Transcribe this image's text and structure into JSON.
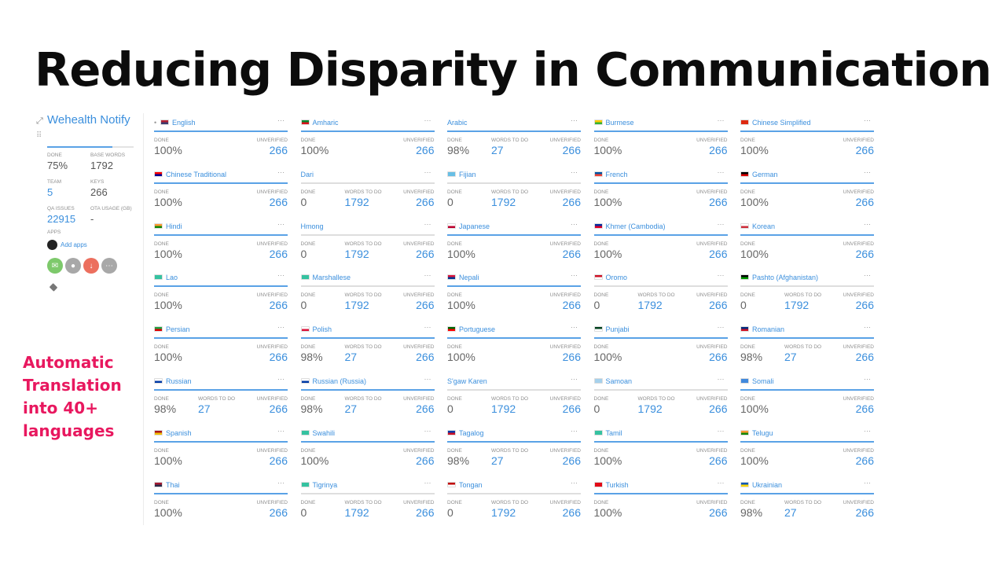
{
  "slide": {
    "title": "Reducing Disparity in Communication",
    "caption": "Automatic Translation into 40+ languages"
  },
  "project": {
    "name": "Wehealth Notify",
    "progress": 0.75,
    "stats": {
      "done_label": "DONE",
      "done_value": "75%",
      "base_words_label": "BASE WORDS",
      "base_words_value": "1792",
      "team_label": "TEAM",
      "team_value": "5",
      "keys_label": "KEYS",
      "keys_value": "266",
      "qa_label": "QA ISSUES",
      "qa_value": "22915",
      "ota_label": "OTA USAGE (GB)",
      "ota_value": "-"
    },
    "apps_label": "APPS",
    "add_apps_label": "Add apps",
    "app_icons": [
      {
        "icon": "envelope-icon",
        "glyph": "✉",
        "color": "#7dc96b"
      },
      {
        "icon": "user-icon",
        "glyph": "●",
        "color": "#a8a8a8"
      },
      {
        "icon": "download-icon",
        "glyph": "↓",
        "color": "#ec6f5e"
      },
      {
        "icon": "more-icon",
        "glyph": "⋯",
        "color": "#a8a8a8"
      }
    ]
  },
  "labels": {
    "done": "DONE",
    "words_to_do": "WORDS TO DO",
    "unverified": "UNVERIFIED",
    "more": "···"
  },
  "languages": [
    {
      "name": "English",
      "flag": [
        "#b22234",
        "#3c3b6e"
      ],
      "bullet": "•",
      "done": "100%",
      "todo": null,
      "unverified": "266"
    },
    {
      "name": "Amharic",
      "flag": [
        "#078930",
        "#da121a"
      ],
      "done": "100%",
      "todo": null,
      "unverified": "266"
    },
    {
      "name": "Arabic",
      "flag": null,
      "done": "98%",
      "todo": "27",
      "unverified": "266"
    },
    {
      "name": "Burmese",
      "flag": [
        "#fecb00",
        "#34b233"
      ],
      "done": "100%",
      "todo": null,
      "unverified": "266"
    },
    {
      "name": "Chinese Simplified",
      "flag": [
        "#de2910",
        "#de2910"
      ],
      "done": "100%",
      "todo": null,
      "unverified": "266"
    },
    {
      "name": "Chinese Traditional",
      "flag": [
        "#fe0000",
        "#000095"
      ],
      "done": "100%",
      "todo": null,
      "unverified": "266"
    },
    {
      "name": "Dari",
      "flag": null,
      "done": "0",
      "todo": "1792",
      "unverified": "266"
    },
    {
      "name": "Fijian",
      "flag": [
        "#68bfe5",
        "#68bfe5"
      ],
      "done": "0",
      "todo": "1792",
      "unverified": "266"
    },
    {
      "name": "French",
      "flag": [
        "#0055a4",
        "#ef4135"
      ],
      "done": "100%",
      "todo": null,
      "unverified": "266"
    },
    {
      "name": "German",
      "flag": [
        "#000000",
        "#dd0000"
      ],
      "done": "100%",
      "todo": null,
      "unverified": "266"
    },
    {
      "name": "Hindi",
      "flag": [
        "#ff9933",
        "#138808"
      ],
      "done": "100%",
      "todo": null,
      "unverified": "266"
    },
    {
      "name": "Hmong",
      "flag": null,
      "done": "0",
      "todo": "1792",
      "unverified": "266"
    },
    {
      "name": "Japanese",
      "flag": [
        "#ffffff",
        "#bc002d"
      ],
      "done": "100%",
      "todo": null,
      "unverified": "266"
    },
    {
      "name": "Khmer (Cambodia)",
      "flag": [
        "#032ea1",
        "#e00025"
      ],
      "done": "100%",
      "todo": null,
      "unverified": "266"
    },
    {
      "name": "Korean",
      "flag": [
        "#ffffff",
        "#cd2e3a"
      ],
      "done": "100%",
      "todo": null,
      "unverified": "266"
    },
    {
      "name": "Lao",
      "flag": [
        "#35c2a0",
        "#35c2a0"
      ],
      "done": "100%",
      "todo": null,
      "unverified": "266"
    },
    {
      "name": "Marshallese",
      "flag": [
        "#35c2a0",
        "#35c2a0"
      ],
      "done": "0",
      "todo": "1792",
      "unverified": "266"
    },
    {
      "name": "Nepali",
      "flag": [
        "#dc143c",
        "#003893"
      ],
      "done": "100%",
      "todo": null,
      "unverified": "266"
    },
    {
      "name": "Oromo",
      "flag": [
        "#ce1126",
        "#ffffff"
      ],
      "done": "0",
      "todo": "1792",
      "unverified": "266"
    },
    {
      "name": "Pashto (Afghanistan)",
      "flag": [
        "#000000",
        "#009900"
      ],
      "done": "0",
      "todo": "1792",
      "unverified": "266"
    },
    {
      "name": "Persian",
      "flag": [
        "#239f40",
        "#da0000"
      ],
      "done": "100%",
      "todo": null,
      "unverified": "266"
    },
    {
      "name": "Polish",
      "flag": [
        "#ffffff",
        "#dc143c"
      ],
      "done": "98%",
      "todo": "27",
      "unverified": "266"
    },
    {
      "name": "Portuguese",
      "flag": [
        "#006600",
        "#ff0000"
      ],
      "done": "100%",
      "todo": null,
      "unverified": "266"
    },
    {
      "name": "Punjabi",
      "flag": [
        "#01411c",
        "#ffffff"
      ],
      "done": "100%",
      "todo": null,
      "unverified": "266"
    },
    {
      "name": "Romanian",
      "flag": [
        "#002b7f",
        "#ce1126"
      ],
      "done": "98%",
      "todo": "27",
      "unverified": "266"
    },
    {
      "name": "Russian",
      "flag": [
        "#ffffff",
        "#0039a6"
      ],
      "done": "98%",
      "todo": "27",
      "unverified": "266"
    },
    {
      "name": "Russian (Russia)",
      "flag": [
        "#ffffff",
        "#0039a6"
      ],
      "done": "98%",
      "todo": "27",
      "unverified": "266"
    },
    {
      "name": "S'gaw Karen",
      "flag": null,
      "done": "0",
      "todo": "1792",
      "unverified": "266"
    },
    {
      "name": "Samoan",
      "flag": [
        "#a6d1ec",
        "#a6d1ec"
      ],
      "done": "0",
      "todo": "1792",
      "unverified": "266"
    },
    {
      "name": "Somali",
      "flag": [
        "#4189dd",
        "#4189dd"
      ],
      "done": "100%",
      "todo": null,
      "unverified": "266"
    },
    {
      "name": "Spanish",
      "flag": [
        "#aa151b",
        "#f1bf00"
      ],
      "done": "100%",
      "todo": null,
      "unverified": "266"
    },
    {
      "name": "Swahili",
      "flag": [
        "#35c2a0",
        "#35c2a0"
      ],
      "done": "100%",
      "todo": null,
      "unverified": "266"
    },
    {
      "name": "Tagalog",
      "flag": [
        "#0038a8",
        "#ce1126"
      ],
      "done": "98%",
      "todo": "27",
      "unverified": "266"
    },
    {
      "name": "Tamil",
      "flag": [
        "#35c2a0",
        "#35c2a0"
      ],
      "done": "100%",
      "todo": null,
      "unverified": "266"
    },
    {
      "name": "Telugu",
      "flag": [
        "#ff9933",
        "#138808"
      ],
      "done": "100%",
      "todo": null,
      "unverified": "266"
    },
    {
      "name": "Thai",
      "flag": [
        "#a51931",
        "#2d2a4a"
      ],
      "done": "100%",
      "todo": null,
      "unverified": "266"
    },
    {
      "name": "Tigrinya",
      "flag": [
        "#35c2a0",
        "#35c2a0"
      ],
      "done": "0",
      "todo": "1792",
      "unverified": "266"
    },
    {
      "name": "Tongan",
      "flag": [
        "#c10000",
        "#ffffff"
      ],
      "done": "0",
      "todo": "1792",
      "unverified": "266"
    },
    {
      "name": "Turkish",
      "flag": [
        "#e30a17",
        "#e30a17"
      ],
      "done": "100%",
      "todo": null,
      "unverified": "266"
    },
    {
      "name": "Ukrainian",
      "flag": [
        "#0057b7",
        "#ffd700"
      ],
      "done": "98%",
      "todo": "27",
      "unverified": "266"
    }
  ]
}
